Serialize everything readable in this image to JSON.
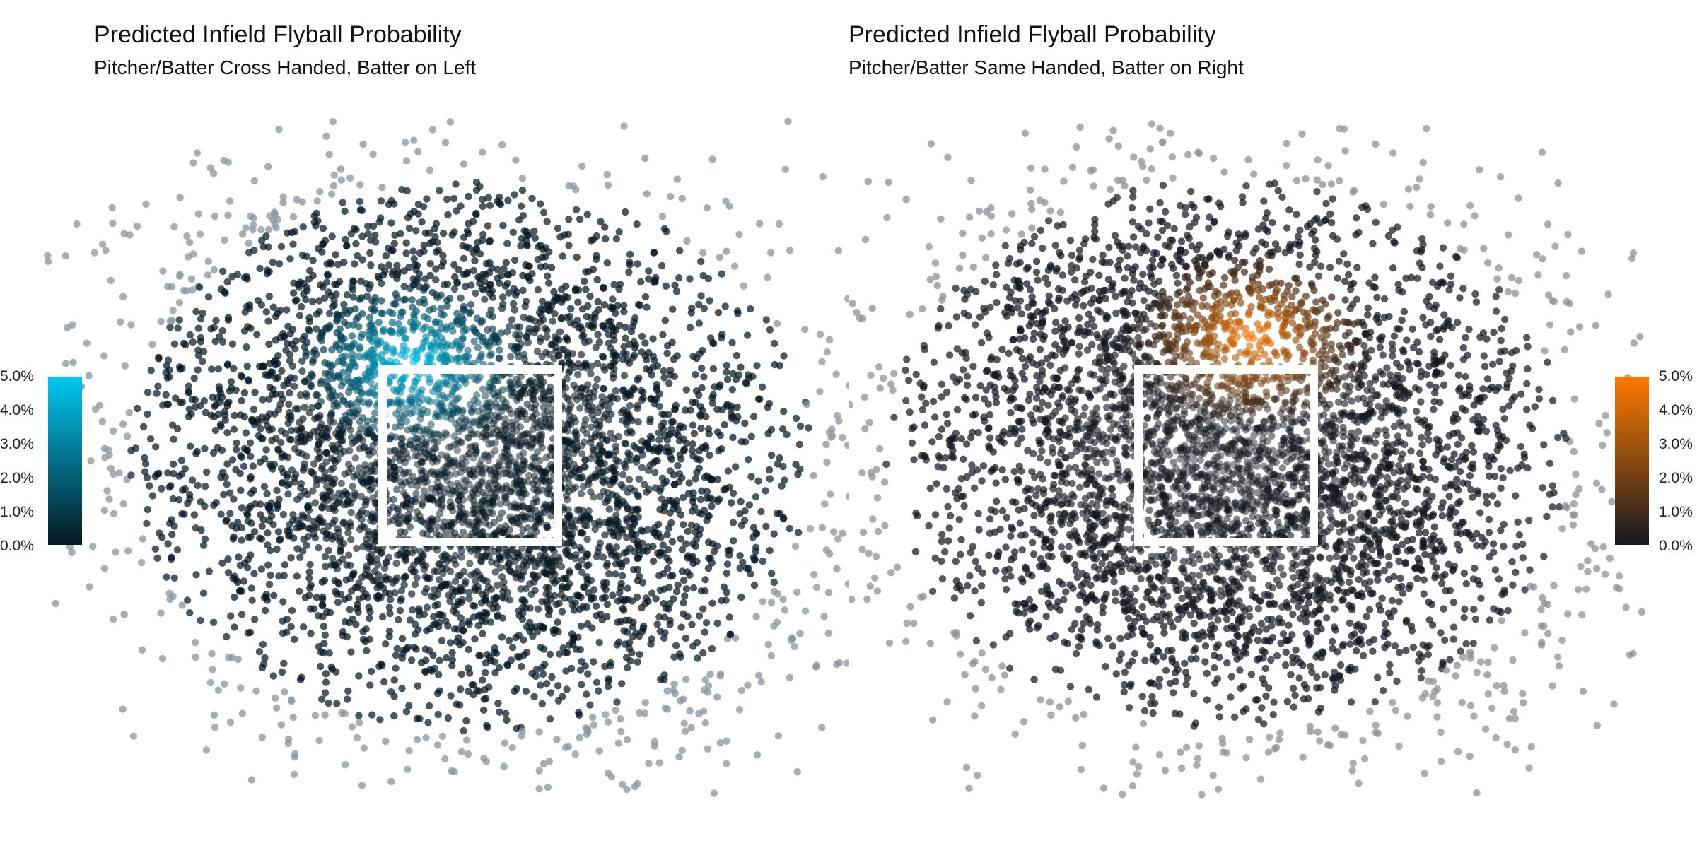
{
  "panels": [
    {
      "title": "Predicted Infield Flyball Probability",
      "subtitle": "Pitcher/Batter Cross Handed, Batter on Left",
      "colors": {
        "low": "#061722",
        "high": "#00c8f2",
        "faint": "#8a949c"
      },
      "hot_center": [
        -0.35,
        0.55
      ],
      "colorbar_ticks": [
        "5.0%",
        "4.0%",
        "3.0%",
        "2.0%",
        "1.0%",
        "0.0%"
      ]
    },
    {
      "title": "Predicted Infield Flyball Probability",
      "subtitle": "Pitcher/Batter Same Handed, Batter on Right",
      "colors": {
        "low": "#141820",
        "high": "#ff7a00",
        "faint": "#8e9094"
      },
      "hot_center": [
        0.15,
        0.7
      ],
      "colorbar_ticks": [
        "5.0%",
        "4.0%",
        "3.0%",
        "2.0%",
        "1.0%",
        "0.0%"
      ]
    }
  ],
  "chart_data": [
    {
      "type": "scatter",
      "title": "Predicted Infield Flyball Probability",
      "subtitle": "Pitcher/Batter Cross Handed, Batter on Left",
      "xlim": [
        -2.5,
        2.5
      ],
      "ylim": [
        -2.0,
        2.0
      ],
      "strike_zone": {
        "x": [
          -0.83,
          0.83
        ],
        "y": [
          -0.9,
          0.7
        ]
      },
      "color_scale": {
        "min": 0.0,
        "max": 0.05,
        "ticks": [
          0.0,
          0.01,
          0.02,
          0.03,
          0.04,
          0.05
        ]
      },
      "grid": false,
      "legend": "left"
    },
    {
      "type": "scatter",
      "title": "Predicted Infield Flyball Probability",
      "subtitle": "Pitcher/Batter Same Handed, Batter on Right",
      "xlim": [
        -2.5,
        2.5
      ],
      "ylim": [
        -2.0,
        2.0
      ],
      "strike_zone": {
        "x": [
          -0.83,
          0.83
        ],
        "y": [
          -0.9,
          0.7
        ]
      },
      "color_scale": {
        "min": 0.0,
        "max": 0.05,
        "ticks": [
          0.0,
          0.01,
          0.02,
          0.03,
          0.04,
          0.05
        ]
      },
      "grid": false,
      "legend": "right"
    }
  ]
}
